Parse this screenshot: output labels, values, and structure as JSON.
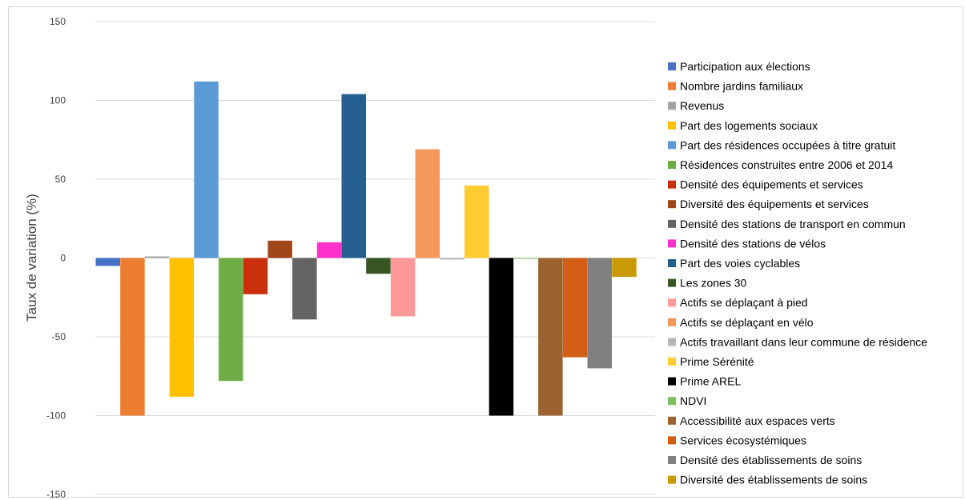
{
  "chart_data": {
    "type": "bar",
    "title": "",
    "xlabel": "",
    "ylabel": "Taux de variation (%)",
    "ylim": [
      -150,
      150
    ],
    "yticks": [
      150,
      100,
      50,
      0,
      -50,
      -100,
      -150
    ],
    "grid": true,
    "legend_position": "right",
    "series": [
      {
        "name": "Participation aux élections",
        "value": -5,
        "color": "#4472C4"
      },
      {
        "name": "Nombre jardins familiaux",
        "value": -100,
        "color": "#ED7D31"
      },
      {
        "name": "Revenus",
        "value": 1,
        "color": "#A5A5A5"
      },
      {
        "name": "Part des logements sociaux",
        "value": -88,
        "color": "#FFC000"
      },
      {
        "name": "Part des résidences occupées à titre gratuit",
        "value": 112,
        "color": "#5B9BD5"
      },
      {
        "name": "Résidences construites entre 2006 et 2014",
        "value": -78,
        "color": "#70AD47"
      },
      {
        "name": "Densité des équipements et services",
        "value": -23,
        "color": "#C9310C"
      },
      {
        "name": "Diversité des équipements et services",
        "value": 11,
        "color": "#A0461B"
      },
      {
        "name": "Densité des stations de transport en commun",
        "value": -39,
        "color": "#636363"
      },
      {
        "name": "Densité des stations de vélos",
        "value": 10,
        "color": "#FF33CC"
      },
      {
        "name": "Part des voies cyclables",
        "value": 104,
        "color": "#255E91"
      },
      {
        "name": "Les zones 30",
        "value": -10,
        "color": "#375623"
      },
      {
        "name": "Actifs se déplaçant à pied",
        "value": -37,
        "color": "#FF9999"
      },
      {
        "name": "Actifs se déplaçant en vélo",
        "value": 69,
        "color": "#F4975A"
      },
      {
        "name": "Actifs travaillant dans leur commune de résidence",
        "value": -1,
        "color": "#B7B7B7"
      },
      {
        "name": "Prime Sérénité",
        "value": 46,
        "color": "#FFCD33"
      },
      {
        "name": "Prime AREL",
        "value": -100,
        "color": "#000000"
      },
      {
        "name": "NDVI",
        "value": 0,
        "color": "#7FBF5F"
      },
      {
        "name": "Accessibilité aux espaces verts",
        "value": -100,
        "color": "#9C6331"
      },
      {
        "name": "Services écosystémiques",
        "value": -63,
        "color": "#D35F17"
      },
      {
        "name": "Densité des établissements de soins",
        "value": -70,
        "color": "#808080"
      },
      {
        "name": "Diversité des établissements de soins",
        "value": -12,
        "color": "#C99A06"
      }
    ]
  }
}
